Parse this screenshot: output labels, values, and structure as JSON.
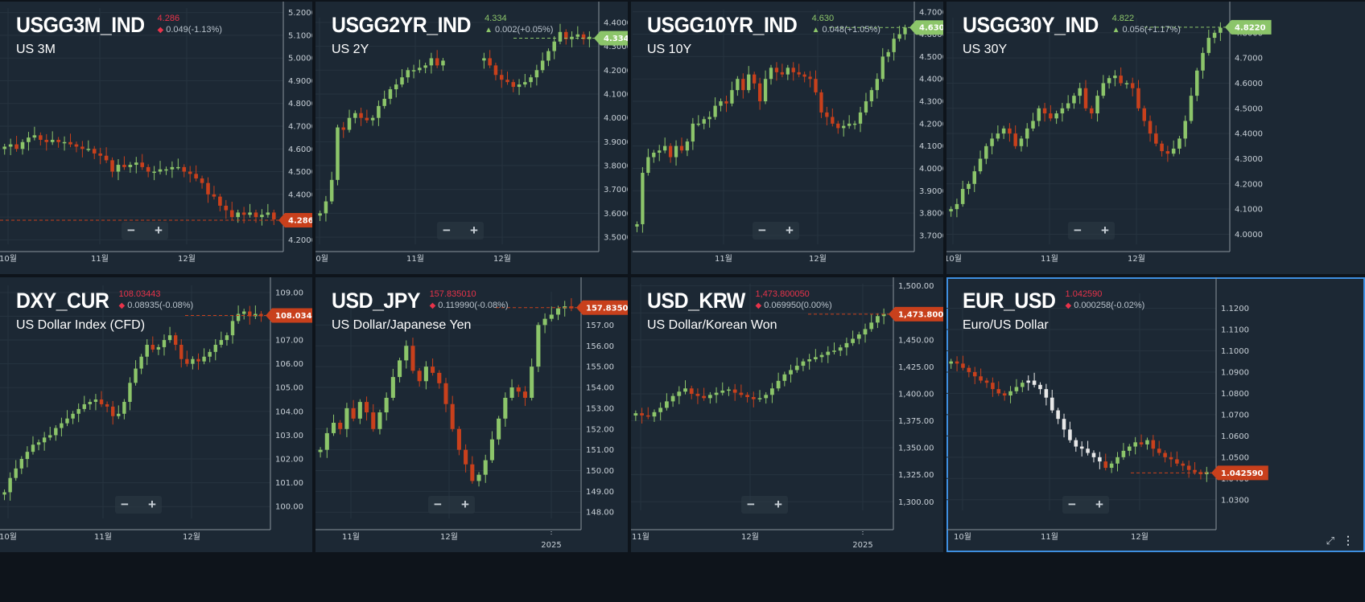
{
  "colors": {
    "up": "#8cc56a",
    "down": "#c8401c",
    "bw": "#e8e8e8",
    "bg": "#1c2834",
    "grid": "#26333f",
    "axis": "#c9d1d8",
    "red_tag": "#c8401c",
    "green_tag": "#8cc56a",
    "selected": "#3e8fe0"
  },
  "controls": {
    "minus": "−",
    "plus": "+",
    "expand_icon": "⤢",
    "more_icon": "⋮"
  },
  "panels": [
    {
      "symbol": "USGG3M_IND",
      "desc": "US 3M",
      "price": "4.286",
      "change": "0.049(-1.13%)",
      "dir": "down",
      "last_label": "4.2860",
      "chart_data": {
        "type": "candlestick",
        "ylim": [
          4.18,
          5.22
        ],
        "yticks": [
          "5.2000",
          "5.1000",
          "5.0000",
          "4.9000",
          "4.8000",
          "4.7000",
          "4.6000",
          "4.5000",
          "4.4000",
          "4.3000",
          "4.2000"
        ],
        "xlabels": [
          "10월",
          "11월",
          "12월"
        ],
        "last": 4.286,
        "style": "color",
        "points": [
          4.61,
          4.62,
          4.6,
          4.63,
          4.65,
          4.66,
          4.64,
          4.63,
          4.64,
          4.63,
          4.63,
          4.62,
          4.61,
          4.6,
          4.6,
          4.58,
          4.57,
          4.55,
          4.5,
          4.53,
          4.52,
          4.53,
          4.54,
          4.52,
          4.5,
          4.5,
          4.51,
          4.51,
          4.52,
          4.52,
          4.5,
          4.49,
          4.47,
          4.45,
          4.4,
          4.39,
          4.35,
          4.33,
          4.3,
          4.32,
          4.31,
          4.32,
          4.3,
          4.31,
          4.32,
          4.29
        ]
      }
    },
    {
      "symbol": "USGG2YR_IND",
      "desc": "US 2Y",
      "price": "4.334",
      "change": "0.002(+0.05%)",
      "dir": "up",
      "last_label": "4.3340",
      "chart_data": {
        "type": "candlestick",
        "ylim": [
          3.47,
          4.42
        ],
        "yticks": [
          "4.4000",
          "4.3000",
          "4.2000",
          "4.1000",
          "4.0000",
          "3.9000",
          "3.8000",
          "3.7000",
          "3.6000",
          "3.5000"
        ],
        "xlabels": [
          "10월",
          "11월",
          "12월"
        ],
        "last": 4.334,
        "style": "color",
        "points": [
          3.6,
          3.65,
          3.74,
          3.96,
          3.95,
          4.0,
          4.02,
          4.0,
          3.99,
          4.0,
          4.05,
          4.08,
          4.12,
          4.14,
          4.17,
          4.2,
          4.2,
          4.21,
          4.22,
          4.25,
          4.22,
          4.24,
          null,
          null,
          null,
          null,
          null,
          null,
          4.25,
          4.22,
          4.18,
          4.16,
          4.15,
          4.13,
          4.14,
          4.15,
          4.17,
          4.2,
          4.24,
          4.28,
          4.32,
          4.36,
          4.33,
          4.34,
          4.35,
          4.33,
          4.34
        ]
      }
    },
    {
      "symbol": "USGG10YR_IND",
      "desc": "US 10Y",
      "price": "4.630",
      "change": "0.048(+1.05%)",
      "dir": "up",
      "last_label": "4.6300",
      "chart_data": {
        "type": "candlestick",
        "ylim": [
          3.66,
          4.71
        ],
        "yticks": [
          "4.7000",
          "4.6000",
          "4.5000",
          "4.4000",
          "4.3000",
          "4.2000",
          "4.1000",
          "4.0000",
          "3.9000",
          "3.8000",
          "3.7000"
        ],
        "xlabels": [
          "11월",
          "12월"
        ],
        "last": 4.63,
        "style": "color",
        "points": [
          3.75,
          3.98,
          4.05,
          4.07,
          4.08,
          4.1,
          4.05,
          4.1,
          4.08,
          4.12,
          4.2,
          4.2,
          4.22,
          4.23,
          4.28,
          4.3,
          4.29,
          4.35,
          4.4,
          4.35,
          4.42,
          4.38,
          4.3,
          4.4,
          4.45,
          4.43,
          4.42,
          4.45,
          4.43,
          4.42,
          4.41,
          4.4,
          4.34,
          4.25,
          4.23,
          4.2,
          4.18,
          4.19,
          4.2,
          4.2,
          4.25,
          4.3,
          4.35,
          4.4,
          4.5,
          4.52,
          4.58,
          4.6,
          4.63
        ]
      }
    },
    {
      "symbol": "USGG30Y_IND",
      "desc": "US 30Y",
      "price": "4.822",
      "change": "0.056(+1.17%)",
      "dir": "up",
      "last_label": "4.8220",
      "chart_data": {
        "type": "candlestick",
        "ylim": [
          3.96,
          4.86
        ],
        "yticks": [
          "4.8000",
          "4.7000",
          "4.6000",
          "4.5000",
          "4.4000",
          "4.3000",
          "4.2000",
          "4.1000",
          "4.0000"
        ],
        "xlabels": [
          "10월",
          "11월",
          "12월"
        ],
        "last": 4.822,
        "style": "color",
        "points": [
          4.1,
          4.12,
          4.18,
          4.2,
          4.25,
          4.3,
          4.35,
          4.38,
          4.4,
          4.42,
          4.4,
          4.35,
          4.38,
          4.42,
          4.45,
          4.5,
          4.48,
          4.46,
          4.48,
          4.5,
          4.52,
          4.55,
          4.58,
          4.5,
          4.48,
          4.55,
          4.6,
          4.62,
          4.63,
          4.6,
          4.6,
          4.58,
          4.5,
          4.45,
          4.4,
          4.36,
          4.33,
          4.32,
          4.34,
          4.38,
          4.45,
          4.55,
          4.65,
          4.72,
          4.78,
          4.8,
          4.82
        ]
      }
    },
    {
      "symbol": "DXY_CUR",
      "desc": "US Dollar Index (CFD)",
      "price": "108.03443",
      "change": "0.08935(-0.08%)",
      "dir": "down",
      "last_label": "108.03443",
      "chart_data": {
        "type": "candlestick",
        "ylim": [
          99.5,
          109.3
        ],
        "yticks": [
          "109.00",
          "108.00",
          "107.00",
          "106.00",
          "105.00",
          "104.00",
          "103.00",
          "102.00",
          "101.00",
          "100.00"
        ],
        "xlabels": [
          "10월",
          "11월",
          "12월"
        ],
        "last": 108.034,
        "style": "color",
        "points": [
          100.6,
          101.2,
          101.6,
          102.0,
          102.3,
          102.6,
          102.7,
          102.9,
          103.0,
          103.3,
          103.5,
          103.7,
          103.9,
          104.1,
          104.3,
          104.4,
          104.5,
          104.3,
          104.2,
          103.8,
          103.9,
          104.4,
          105.2,
          105.8,
          106.3,
          106.8,
          106.6,
          106.7,
          107.0,
          107.2,
          106.8,
          106.2,
          106.0,
          106.2,
          106.1,
          106.3,
          106.5,
          106.8,
          107.0,
          107.2,
          107.8,
          108.1,
          108.2,
          108.0,
          108.1,
          108.0
        ]
      }
    },
    {
      "symbol": "USD_JPY",
      "desc": "US Dollar/Japanese Yen",
      "price": "157.835010",
      "change": "0.119990(-0.08%)",
      "dir": "down",
      "last_label": "157.835010",
      "chart_data": {
        "type": "candlestick",
        "ylim": [
          147.7,
          158.6
        ],
        "yticks": [
          "157.00",
          "156.00",
          "155.00",
          "154.00",
          "153.00",
          "152.00",
          "151.00",
          "150.00",
          "149.00",
          "148.00"
        ],
        "xlabels": [
          "11월",
          "12월",
          "2025"
        ],
        "last": 157.835,
        "style": "color",
        "points": [
          151.0,
          151.8,
          152.3,
          152.0,
          153.0,
          152.5,
          153.3,
          152.8,
          152.0,
          152.8,
          153.5,
          154.5,
          155.3,
          156.0,
          154.8,
          154.3,
          155.0,
          154.7,
          154.2,
          153.2,
          152.0,
          151.0,
          150.3,
          149.5,
          149.8,
          150.5,
          151.5,
          152.5,
          153.5,
          154.0,
          153.8,
          153.5,
          155.0,
          157.0,
          157.3,
          157.5,
          157.8,
          157.9,
          157.8
        ]
      }
    },
    {
      "symbol": "USD_KRW",
      "desc": "US Dollar/Korean Won",
      "price": "1,473.800050",
      "change": "0.069950(0.00%)",
      "dir": "down",
      "last_label": "1,473.800050",
      "chart_data": {
        "type": "candlestick",
        "ylim": [
          1292,
          1502
        ],
        "yticks": [
          "1,500.00",
          "1,475.00",
          "1,450.00",
          "1,425.00",
          "1,400.00",
          "1,375.00",
          "1,350.00",
          "1,325.00",
          "1,300.00"
        ],
        "xlabels": [
          "11월",
          "12월",
          "2025"
        ],
        "last": 1473.8,
        "style": "color",
        "points": [
          1382,
          1380,
          1379,
          1383,
          1387,
          1393,
          1398,
          1402,
          1405,
          1400,
          1398,
          1396,
          1399,
          1401,
          1403,
          1404,
          1401,
          1399,
          1397,
          1395,
          1396,
          1399,
          1405,
          1412,
          1418,
          1422,
          1426,
          1430,
          1432,
          1434,
          1436,
          1439,
          1440,
          1443,
          1447,
          1451,
          1455,
          1460,
          1466,
          1472,
          1474
        ]
      }
    },
    {
      "symbol": "EUR_USD",
      "desc": "Euro/US Dollar",
      "price": "1.042590",
      "change": "0.000258(-0.02%)",
      "dir": "down",
      "last_label": "1.042590",
      "chart_data": {
        "type": "candlestick",
        "ylim": [
          1.025,
          1.127
        ],
        "yticks": [
          "1.1200",
          "1.1100",
          "1.1000",
          "1.0900",
          "1.0800",
          "1.0700",
          "1.0600",
          "1.0500",
          "1.0400",
          "1.0300"
        ],
        "xlabels": [
          "10월",
          "11월",
          "12월"
        ],
        "last": 1.0426,
        "style": "mixed",
        "points": [
          1.095,
          1.094,
          1.092,
          1.09,
          1.088,
          1.086,
          1.085,
          1.082,
          1.08,
          1.079,
          1.081,
          1.083,
          1.085,
          1.086,
          1.084,
          1.082,
          1.078,
          1.072,
          1.068,
          1.063,
          1.058,
          1.055,
          1.054,
          1.052,
          1.05,
          1.048,
          1.045,
          1.047,
          1.05,
          1.053,
          1.055,
          1.057,
          1.056,
          1.058,
          1.054,
          1.052,
          1.05,
          1.049,
          1.047,
          1.046,
          1.044,
          1.043,
          1.042,
          1.043
        ]
      }
    }
  ]
}
